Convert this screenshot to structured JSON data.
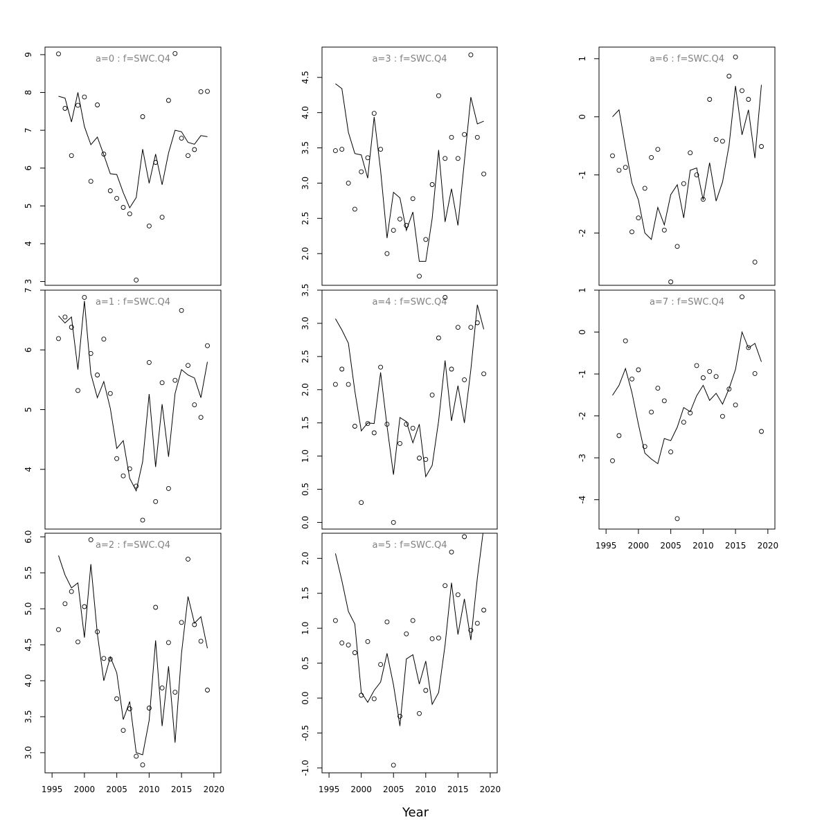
{
  "chart_data": {
    "type": "scatter",
    "xlabel": "Year",
    "x": [
      1996,
      1997,
      1998,
      1999,
      2000,
      2001,
      2002,
      2003,
      2004,
      2005,
      2006,
      2007,
      2008,
      2009,
      2010,
      2011,
      2012,
      2013,
      2014,
      2015,
      2016,
      2017,
      2018,
      2019
    ],
    "xlim": [
      1995,
      2020
    ],
    "xticks": [
      1995,
      2000,
      2005,
      2010,
      2015,
      2020
    ],
    "panels": [
      {
        "title": "a=0  :  f=SWC.Q4",
        "ylim": [
          2.9,
          9.2
        ],
        "yticks": [
          3,
          4,
          5,
          6,
          7,
          8,
          9
        ],
        "ytick_labels": [
          "3",
          "4",
          "5",
          "6",
          "7",
          "8",
          "9"
        ],
        "points": [
          9.02,
          7.58,
          6.33,
          7.66,
          7.88,
          5.65,
          7.67,
          6.37,
          5.4,
          5.2,
          4.96,
          4.79,
          3.04,
          7.36,
          4.47,
          6.15,
          4.7,
          7.79,
          9.03,
          6.79,
          6.33,
          6.49,
          8.02,
          8.03
        ],
        "line": [
          7.9,
          7.85,
          7.22,
          8.0,
          7.1,
          6.62,
          6.82,
          6.35,
          5.85,
          5.83,
          5.35,
          4.95,
          5.22,
          6.5,
          5.6,
          6.37,
          5.56,
          6.4,
          7.0,
          6.96,
          6.68,
          6.63,
          6.86,
          6.83
        ]
      },
      {
        "title": "a=1  :  f=SWC.Q4",
        "ylim": [
          3.0,
          7.0
        ],
        "yticks": [
          4,
          5,
          6,
          7
        ],
        "ytick_labels": [
          "4",
          "5",
          "6",
          "7"
        ],
        "points": [
          6.19,
          6.55,
          6.38,
          5.32,
          6.88,
          5.94,
          5.58,
          6.18,
          5.27,
          4.18,
          3.89,
          4.01,
          3.72,
          3.15,
          5.79,
          3.46,
          5.45,
          3.68,
          5.49,
          6.66,
          5.74,
          5.08,
          4.87,
          6.07
        ],
        "line": [
          6.57,
          6.45,
          6.55,
          5.67,
          6.82,
          5.6,
          5.2,
          5.47,
          5.02,
          4.35,
          4.48,
          3.85,
          3.64,
          4.13,
          5.26,
          4.04,
          5.09,
          4.21,
          5.27,
          5.67,
          5.58,
          5.53,
          5.2,
          5.8
        ]
      },
      {
        "title": "a=2  :  f=SWC.Q4",
        "ylim": [
          2.72,
          6.05
        ],
        "yticks": [
          3.0,
          3.5,
          4.0,
          4.5,
          5.0,
          5.5,
          6.0
        ],
        "ytick_labels": [
          "3.0",
          "3.5",
          "4.0",
          "4.5",
          "5.0",
          "5.5",
          "6.0"
        ],
        "points": [
          4.71,
          5.07,
          5.24,
          4.54,
          5.03,
          5.96,
          4.68,
          4.31,
          4.3,
          3.75,
          3.31,
          3.61,
          2.95,
          2.83,
          3.62,
          5.02,
          3.9,
          4.53,
          3.84,
          4.81,
          5.69,
          4.78,
          4.55,
          3.87
        ],
        "line": [
          5.74,
          5.47,
          5.29,
          5.36,
          4.6,
          5.62,
          4.65,
          4.0,
          4.33,
          4.11,
          3.46,
          3.71,
          3.0,
          2.97,
          3.45,
          4.56,
          3.37,
          4.2,
          3.14,
          4.38,
          5.17,
          4.8,
          4.89,
          4.45
        ]
      },
      {
        "title": "a=3  :  f=SWC.Q4",
        "ylim": [
          1.55,
          4.93
        ],
        "yticks": [
          2.0,
          2.5,
          3.0,
          3.5,
          4.0,
          4.5
        ],
        "ytick_labels": [
          "2.0",
          "2.5",
          "3.0",
          "3.5",
          "4.0",
          "4.5"
        ],
        "points": [
          3.46,
          3.48,
          3.0,
          2.63,
          3.16,
          3.36,
          3.99,
          3.48,
          2.0,
          2.33,
          2.49,
          2.4,
          2.78,
          1.68,
          2.2,
          2.98,
          4.24,
          3.35,
          3.65,
          3.35,
          3.69,
          4.82,
          3.65,
          3.13
        ],
        "line": [
          4.41,
          4.34,
          3.72,
          3.42,
          3.4,
          3.07,
          3.94,
          3.18,
          2.22,
          2.87,
          2.79,
          2.33,
          2.59,
          1.89,
          1.89,
          2.5,
          3.47,
          2.45,
          2.92,
          2.4,
          3.31,
          4.22,
          3.84,
          3.88
        ]
      },
      {
        "title": "a=4  :  f=SWC.Q4",
        "ylim": [
          -0.1,
          3.5
        ],
        "yticks": [
          0.0,
          0.5,
          1.0,
          1.5,
          2.0,
          2.5,
          3.0,
          3.5
        ],
        "ytick_labels": [
          "0.0",
          "0.5",
          "1.0",
          "1.5",
          "2.0",
          "2.5",
          "3.0",
          "3.5"
        ],
        "points": [
          2.08,
          2.31,
          2.08,
          1.45,
          0.3,
          1.49,
          1.35,
          2.34,
          1.48,
          0.0,
          1.19,
          1.48,
          1.42,
          0.97,
          0.95,
          1.92,
          2.78,
          3.39,
          2.31,
          2.94,
          2.15,
          2.94,
          3.01,
          2.24
        ],
        "line": [
          3.07,
          2.9,
          2.7,
          1.98,
          1.38,
          1.5,
          1.49,
          2.26,
          1.45,
          0.72,
          1.58,
          1.52,
          1.2,
          1.48,
          0.69,
          0.86,
          1.53,
          2.44,
          1.53,
          2.06,
          1.5,
          2.3,
          3.28,
          2.91
        ]
      },
      {
        "title": "a=5  :  f=SWC.Q4",
        "ylim": [
          -1.07,
          2.36
        ],
        "yticks": [
          -1.0,
          -0.5,
          0.0,
          0.5,
          1.0,
          1.5,
          2.0
        ],
        "ytick_labels": [
          "-1.0",
          "-0.5",
          "0.0",
          "0.5",
          "1.0",
          "1.5",
          "2.0"
        ],
        "points": [
          1.11,
          0.79,
          0.76,
          0.65,
          0.04,
          0.81,
          -0.01,
          0.48,
          1.09,
          -0.96,
          -0.26,
          0.92,
          1.11,
          -0.22,
          0.11,
          0.85,
          0.86,
          1.61,
          2.09,
          1.48,
          2.31,
          0.97,
          1.07,
          1.26
        ],
        "line": [
          2.07,
          1.68,
          1.24,
          1.06,
          0.08,
          -0.06,
          0.11,
          0.23,
          0.64,
          0.19,
          -0.4,
          0.56,
          0.62,
          0.2,
          0.53,
          -0.09,
          0.08,
          0.76,
          1.65,
          0.91,
          1.42,
          0.83,
          1.72,
          2.45
        ]
      },
      {
        "title": "a=6  :  f=SWC.Q4",
        "ylim": [
          -2.9,
          1.2
        ],
        "yticks": [
          -2,
          -1,
          0,
          1
        ],
        "ytick_labels": [
          "-2",
          "-1",
          "0",
          "1"
        ],
        "points": [
          -0.67,
          -0.92,
          -0.87,
          -1.98,
          -1.74,
          -1.23,
          -0.7,
          -0.56,
          -1.95,
          -2.84,
          -2.23,
          -1.15,
          -0.62,
          -1.0,
          -1.42,
          0.3,
          -0.39,
          -0.42,
          0.7,
          1.03,
          0.45,
          0.3,
          -2.5,
          -0.51
        ],
        "line": [
          0.0,
          0.12,
          -0.53,
          -1.14,
          -1.43,
          -2.0,
          -2.11,
          -1.56,
          -1.86,
          -1.34,
          -1.17,
          -1.74,
          -0.92,
          -0.88,
          -1.43,
          -0.79,
          -1.45,
          -1.12,
          -0.49,
          0.53,
          -0.31,
          0.12,
          -0.71,
          0.55
        ]
      },
      {
        "title": "a=7  :  f=SWC.Q4",
        "ylim": [
          -4.7,
          1.0
        ],
        "yticks": [
          -4,
          -3,
          -2,
          -1,
          0,
          1
        ],
        "ytick_labels": [
          "-4",
          "-3",
          "-2",
          "-1",
          "0",
          "1"
        ],
        "points": [
          -3.07,
          -2.47,
          -0.21,
          -1.12,
          -0.9,
          -2.73,
          -1.91,
          -1.34,
          -1.64,
          -2.86,
          -4.45,
          -2.15,
          -1.93,
          -0.8,
          -1.09,
          -0.94,
          -1.06,
          -2.01,
          -1.36,
          -1.74,
          0.84,
          -0.37,
          -0.99,
          -2.37
        ],
        "line": [
          -1.51,
          -1.27,
          -0.87,
          -1.44,
          -2.2,
          -2.89,
          -3.03,
          -3.14,
          -2.54,
          -2.59,
          -2.27,
          -1.8,
          -1.9,
          -1.52,
          -1.27,
          -1.63,
          -1.46,
          -1.72,
          -1.35,
          -0.89,
          0.0,
          -0.38,
          -0.27,
          -0.71
        ]
      }
    ]
  }
}
